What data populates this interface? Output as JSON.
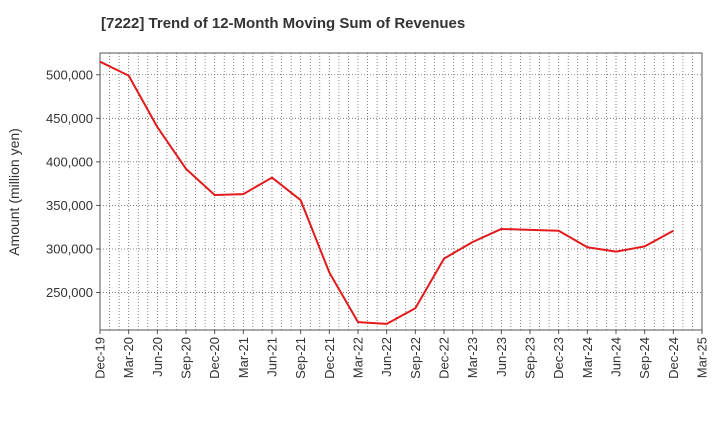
{
  "chart_data": {
    "type": "line",
    "title": "[7222]  Trend of 12-Month Moving Sum of Revenues",
    "xlabel": "",
    "ylabel": "Amount (million yen)",
    "x_ticks": [
      "Dec-19",
      "Mar-20",
      "Jun-20",
      "Sep-20",
      "Dec-20",
      "Mar-21",
      "Jun-21",
      "Sep-21",
      "Dec-21",
      "Mar-22",
      "Jun-22",
      "Sep-22",
      "Dec-22",
      "Mar-23",
      "Jun-23",
      "Sep-23",
      "Dec-23",
      "Mar-24",
      "Jun-24",
      "Sep-24",
      "Dec-24",
      "Mar-25"
    ],
    "y_ticks": [
      "250,000",
      "300,000",
      "350,000",
      "400,000",
      "450,000",
      "500,000"
    ],
    "ylim": [
      207000,
      525000
    ],
    "grid": true,
    "series": [
      {
        "color": "#e31a1c",
        "x": [
          "Dec-19",
          "Mar-20",
          "Jun-20",
          "Sep-20",
          "Dec-20",
          "Mar-21",
          "Jun-21",
          "Sep-21",
          "Dec-21",
          "Mar-22",
          "Jun-22",
          "Sep-22",
          "Dec-22",
          "Mar-23",
          "Jun-23",
          "Sep-23",
          "Dec-23",
          "Mar-24",
          "Jun-24",
          "Sep-24",
          "Dec-24"
        ],
        "values": [
          515000,
          499000,
          440000,
          392000,
          362000,
          363000,
          382000,
          356000,
          273000,
          216000,
          214000,
          232000,
          289000,
          308000,
          323000,
          322000,
          321000,
          302000,
          297000,
          303000,
          321000
        ]
      }
    ]
  }
}
